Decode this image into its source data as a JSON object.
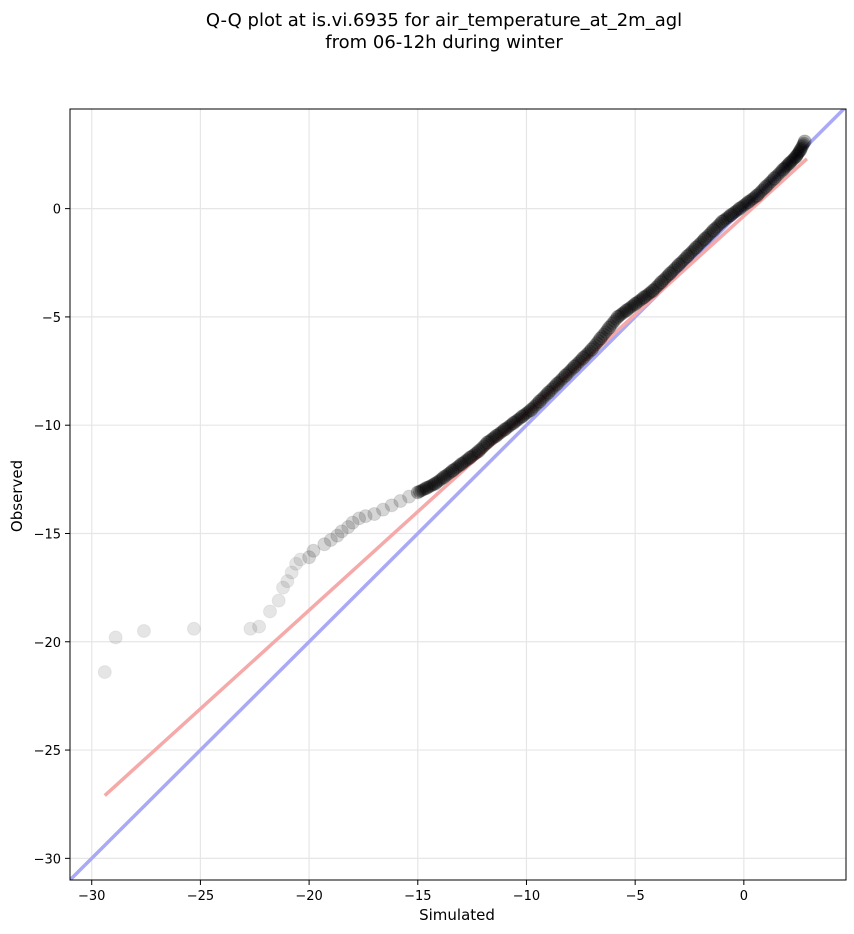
{
  "chart_data": {
    "type": "scatter",
    "title_lines": [
      "Q-Q plot at is.vi.6935 for air_temperature_at_2m_agl",
      "from 06-12h during winter"
    ],
    "xlabel": "Simulated",
    "ylabel": "Observed",
    "xlim": [
      -31,
      4.7
    ],
    "ylim": [
      -31,
      4.6
    ],
    "xticks": [
      -30,
      -25,
      -20,
      -15,
      -10,
      -5,
      0
    ],
    "yticks": [
      -30,
      -25,
      -20,
      -15,
      -10,
      -5,
      0
    ],
    "xtick_labels": [
      "−30",
      "−25",
      "−20",
      "−15",
      "−10",
      "−5",
      "0"
    ],
    "ytick_labels": [
      "−30",
      "−25",
      "−20",
      "−15",
      "−10",
      "−5",
      "0"
    ],
    "grid": true,
    "series": [
      {
        "kind": "reference-line",
        "color": "#a9a9f5",
        "x": [
          -31,
          4.7
        ],
        "y": [
          -31,
          4.7
        ]
      },
      {
        "kind": "fit-line",
        "color": "#f5a9a9",
        "x": [
          -29.4,
          2.9
        ],
        "y": [
          -27.1,
          2.3
        ]
      },
      {
        "kind": "points",
        "color": "#000000",
        "x": [
          -29.4,
          -28.9,
          -27.6,
          -25.3,
          -22.7,
          -22.3,
          -21.8,
          -21.4,
          -21.2,
          -21.0,
          -20.8,
          -20.6,
          -20.4,
          -20.0,
          -19.8,
          -19.3,
          -19.0,
          -18.7,
          -18.5,
          -18.2,
          -18.0,
          -17.7,
          -17.4,
          -17.0,
          -16.6,
          -16.2,
          -15.8,
          -15.4,
          -15.0,
          -14.6,
          -14.2,
          -13.8,
          -13.4,
          -13.0,
          -12.6,
          -12.2,
          -11.8,
          -11.4,
          -11.0,
          -10.6,
          -10.2,
          -9.8,
          -9.4,
          -9.0,
          -8.6,
          -8.2,
          -7.8,
          -7.4,
          -7.0,
          -6.6,
          -6.2,
          -5.8,
          -5.4,
          -5.0,
          -4.6,
          -4.2,
          -3.8,
          -3.4,
          -3.0,
          -2.6,
          -2.2,
          -1.8,
          -1.4,
          -1.0,
          -0.6,
          -0.2,
          0.2,
          0.6,
          1.0,
          1.4,
          1.8,
          2.1,
          2.4,
          2.6,
          2.8
        ],
        "y": [
          -21.4,
          -19.8,
          -19.5,
          -19.4,
          -19.4,
          -19.3,
          -18.6,
          -18.1,
          -17.5,
          -17.2,
          -16.8,
          -16.4,
          -16.2,
          -16.1,
          -15.8,
          -15.5,
          -15.3,
          -15.1,
          -14.9,
          -14.7,
          -14.5,
          -14.3,
          -14.2,
          -14.1,
          -13.9,
          -13.7,
          -13.5,
          -13.3,
          -13.1,
          -12.9,
          -12.7,
          -12.4,
          -12.1,
          -11.8,
          -11.5,
          -11.2,
          -10.8,
          -10.5,
          -10.2,
          -9.9,
          -9.6,
          -9.3,
          -8.9,
          -8.5,
          -8.1,
          -7.7,
          -7.3,
          -6.9,
          -6.5,
          -6.0,
          -5.5,
          -5.0,
          -4.7,
          -4.4,
          -4.1,
          -3.8,
          -3.4,
          -3.0,
          -2.6,
          -2.2,
          -1.8,
          -1.4,
          -1.0,
          -0.6,
          -0.3,
          0.0,
          0.3,
          0.6,
          1.0,
          1.4,
          1.8,
          2.1,
          2.4,
          2.7,
          3.1
        ]
      }
    ]
  }
}
